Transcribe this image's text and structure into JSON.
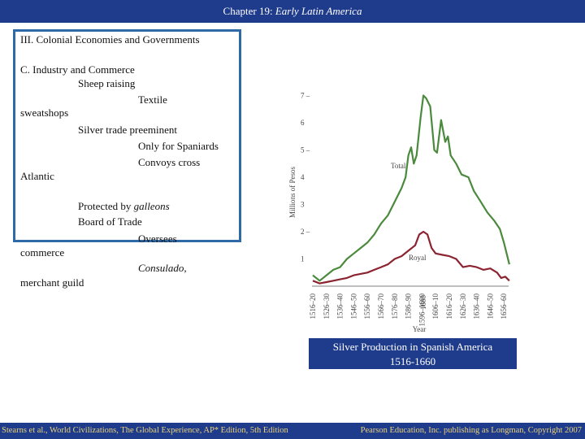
{
  "header": {
    "prefix": "Chapter 19: ",
    "title": "Early Latin America"
  },
  "outline": {
    "heading": "III. Colonial Economies and Governments",
    "section": "C. Industry and Commerce",
    "lines": [
      "Sheep raising",
      "Textile",
      "sweatshops",
      "Silver trade preeminent",
      "Only for Spaniards",
      "Convoys cross",
      "Atlantic",
      "Protected by",
      "galleons",
      "Board of Trade",
      "Oversees",
      "commerce",
      "Consulado",
      ",",
      "merchant guild"
    ]
  },
  "caption": {
    "line1": "Silver Production in Spanish America",
    "line2": "1516-1660"
  },
  "footer": {
    "left": "Stearns et al., World Civilizations, The Global Experience, AP* Edition, 5th Edition",
    "right": "Pearson Education, Inc. publishing as Longman, Copyright 2007"
  },
  "chart_data": {
    "type": "line",
    "title": "",
    "xlabel": "Year",
    "ylabel": "Millions of Pesos",
    "categories": [
      "1516–20",
      "1526–30",
      "1536–40",
      "1546–50",
      "1556–60",
      "1566–70",
      "1576–80",
      "1586–90",
      "1596–1600",
      "1606–10",
      "1616–20",
      "1626–30",
      "1636–40",
      "1646–50",
      "1656–60"
    ],
    "axis_marker": "1600",
    "yticks": [
      "1",
      "2 –",
      "3",
      "4",
      "5 –",
      "6",
      "7 –"
    ],
    "ylim": [
      0,
      7
    ],
    "series": [
      {
        "name": "Total",
        "color": "#4a8a3c",
        "x": [
          0,
          0.5,
          1,
          1.5,
          2,
          2.5,
          3,
          3.5,
          4,
          4.5,
          5,
          5.5,
          6,
          6.5,
          6.8,
          7,
          7.2,
          7.4,
          7.6,
          7.9,
          8.1,
          8.3,
          8.6,
          8.9,
          9.1,
          9.4,
          9.7,
          9.9,
          10.1,
          10.5,
          10.9,
          11.4,
          11.8,
          12.3,
          12.8,
          13.3,
          13.7,
          14,
          14.4
        ],
        "values": [
          0.4,
          0.2,
          0.4,
          0.6,
          0.7,
          1.0,
          1.2,
          1.4,
          1.6,
          1.9,
          2.3,
          2.6,
          3.1,
          3.6,
          4.0,
          4.8,
          5.1,
          4.5,
          4.8,
          6.2,
          7.0,
          6.9,
          6.6,
          5.0,
          4.9,
          6.1,
          5.3,
          5.5,
          4.8,
          4.5,
          4.1,
          4.0,
          3.5,
          3.1,
          2.7,
          2.4,
          2.1,
          1.6,
          0.8
        ]
      },
      {
        "name": "Royal",
        "color": "#8b2430",
        "x": [
          0,
          0.5,
          1,
          1.5,
          2,
          2.5,
          3,
          3.5,
          4,
          4.5,
          5,
          5.5,
          6,
          6.5,
          7,
          7.5,
          7.8,
          8.1,
          8.4,
          8.7,
          9,
          9.5,
          10,
          10.5,
          11,
          11.5,
          12,
          12.5,
          13,
          13.5,
          13.8,
          14.1,
          14.4
        ],
        "values": [
          0.2,
          0.1,
          0.15,
          0.2,
          0.25,
          0.3,
          0.4,
          0.45,
          0.5,
          0.6,
          0.7,
          0.8,
          1.0,
          1.1,
          1.3,
          1.5,
          1.9,
          2.0,
          1.9,
          1.4,
          1.2,
          1.15,
          1.1,
          1.0,
          0.7,
          0.75,
          0.7,
          0.6,
          0.65,
          0.5,
          0.3,
          0.35,
          0.2
        ]
      }
    ]
  }
}
